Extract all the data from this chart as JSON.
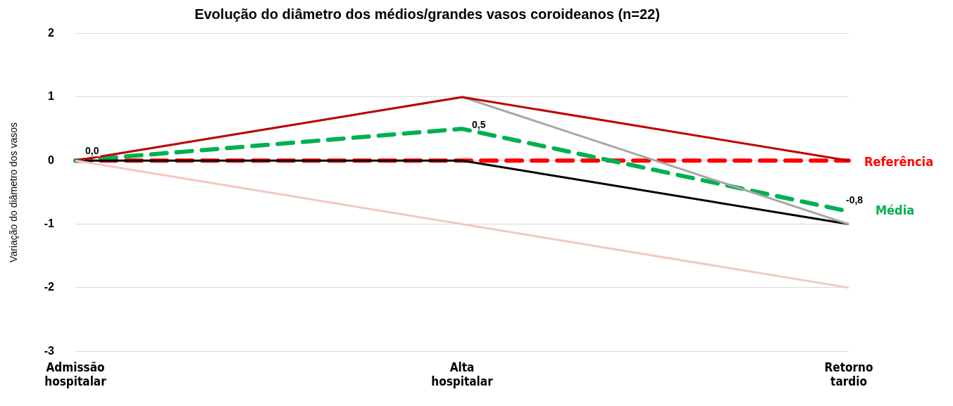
{
  "chart_data": {
    "type": "line",
    "title": "Evolução do diâmetro dos médios/grandes vasos coroideanos (n=22)",
    "ylabel": "Variação do diâmetro dos vasos",
    "categories": [
      "Admissão hospitalar",
      "Alta hospitalar",
      "Retorno tardio"
    ],
    "ylim": [
      -3,
      2
    ],
    "yticks": [
      -3,
      -2,
      -1,
      0,
      1,
      2
    ],
    "grid": "y",
    "legend": false,
    "marker": "none",
    "series": [
      {
        "color": "#f4c7c3",
        "values": [
          0,
          -1,
          -2
        ]
      },
      {
        "color": "#c00000",
        "values": [
          0,
          1,
          0
        ]
      },
      {
        "color": "#a6a6a6",
        "values": [
          0,
          1,
          -1
        ]
      },
      {
        "color": "#000000",
        "values": [
          0,
          0,
          -1
        ]
      },
      {
        "name": "Média",
        "color": "#00b050",
        "values": [
          0,
          0.5,
          -0.8
        ],
        "line_style": "dashed",
        "value_labels": [
          "0,0",
          "0,5",
          "-0,8"
        ]
      },
      {
        "name": "Referência",
        "color": "#ff0000",
        "values": [
          0,
          0,
          0
        ],
        "line_style": "dashed"
      }
    ]
  }
}
